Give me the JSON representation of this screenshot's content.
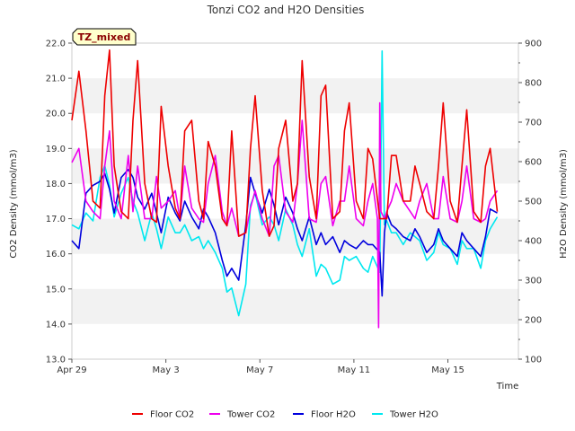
{
  "chart_data": {
    "type": "line",
    "title": "Tonzi CO2 and H2O Densities",
    "xlabel": "Time",
    "ylabel_left": "CO2 Density (mmol/m3)",
    "ylabel_right": "H2O Density (mmol/m3)",
    "badge": "TZ_mixed",
    "ylim_left": [
      13.0,
      22.0
    ],
    "ylim_right": [
      100,
      900
    ],
    "yticks_left": [
      "13.0",
      "14.0",
      "15.0",
      "16.0",
      "17.0",
      "18.0",
      "19.0",
      "20.0",
      "21.0",
      "22.0"
    ],
    "yticks_right": [
      "100",
      "200",
      "300",
      "400",
      "500",
      "600",
      "700",
      "800",
      "900"
    ],
    "xlim_days": [
      0,
      19
    ],
    "xticks": [
      {
        "day": 0,
        "label": "Apr 29"
      },
      {
        "day": 4,
        "label": "May 3"
      },
      {
        "day": 8,
        "label": "May 7"
      },
      {
        "day": 12,
        "label": "May 11"
      },
      {
        "day": 16,
        "label": "May 15"
      }
    ],
    "grid": "horizontal bands",
    "legend_placement": "bottom",
    "series": [
      {
        "name": "Floor CO2",
        "axis": "left",
        "color": "#ee0000",
        "x": [
          0,
          0.3,
          0.6,
          0.9,
          1.2,
          1.4,
          1.6,
          1.8,
          2.1,
          2.4,
          2.6,
          2.8,
          3.1,
          3.4,
          3.6,
          3.8,
          4.1,
          4.4,
          4.6,
          4.8,
          5.1,
          5.4,
          5.6,
          5.8,
          6.1,
          6.4,
          6.6,
          6.8,
          7.1,
          7.4,
          7.6,
          7.8,
          8.1,
          8.4,
          8.6,
          8.8,
          9.1,
          9.4,
          9.6,
          9.8,
          10.1,
          10.4,
          10.6,
          10.8,
          11.1,
          11.4,
          11.6,
          11.8,
          12.1,
          12.4,
          12.6,
          12.8,
          13.1,
          13.4,
          13.6,
          13.8,
          14.1,
          14.4,
          14.6,
          14.8,
          15.1,
          15.4,
          15.6,
          15.8,
          16.1,
          16.4,
          16.6,
          16.8,
          17.1,
          17.4,
          17.6,
          17.8,
          18.1
        ],
        "y": [
          19.8,
          21.2,
          19.5,
          17.5,
          17.3,
          20.5,
          21.8,
          18.5,
          17.2,
          17.0,
          19.8,
          21.5,
          18.0,
          17.0,
          16.9,
          20.2,
          18.5,
          17.3,
          17.0,
          19.5,
          19.8,
          17.5,
          17.0,
          19.2,
          18.5,
          17.0,
          16.8,
          19.5,
          16.5,
          16.6,
          19.0,
          20.5,
          17.8,
          16.5,
          16.8,
          19.0,
          19.8,
          17.5,
          18.0,
          21.5,
          18.2,
          17.0,
          20.5,
          20.8,
          17.0,
          17.2,
          19.5,
          20.3,
          17.5,
          17.0,
          19.0,
          18.7,
          17.0,
          17.0,
          18.8,
          18.8,
          17.5,
          17.5,
          18.5,
          18.0,
          17.2,
          17.0,
          18.5,
          20.3,
          17.5,
          16.9,
          18.5,
          20.1,
          17.2,
          16.9,
          18.5,
          19.0,
          17.2
        ]
      },
      {
        "name": "Tower CO2",
        "axis": "left",
        "color": "#ee00ee",
        "x": [
          0,
          0.3,
          0.6,
          0.9,
          1.2,
          1.4,
          1.6,
          1.8,
          2.1,
          2.4,
          2.6,
          2.8,
          3.1,
          3.4,
          3.6,
          3.8,
          4.1,
          4.4,
          4.6,
          4.8,
          5.1,
          5.4,
          5.6,
          5.8,
          6.1,
          6.4,
          6.6,
          6.8,
          7.1,
          7.4,
          7.6,
          7.8,
          8.1,
          8.4,
          8.6,
          8.8,
          9.1,
          9.4,
          9.6,
          9.8,
          10.1,
          10.4,
          10.6,
          10.8,
          11.1,
          11.4,
          11.6,
          11.8,
          12.1,
          12.4,
          12.6,
          12.8,
          13.0,
          13.05,
          13.1,
          13.15,
          13.3,
          13.4,
          13.6,
          13.8,
          14.1,
          14.4,
          14.6,
          14.8,
          15.1,
          15.4,
          15.6,
          15.8,
          16.1,
          16.4,
          16.6,
          16.8,
          17.1,
          17.4,
          17.6,
          17.8,
          18.1
        ],
        "y": [
          18.6,
          19.0,
          17.5,
          17.2,
          17.0,
          18.5,
          19.5,
          17.5,
          17.0,
          18.8,
          17.2,
          18.5,
          17.0,
          17.0,
          18.2,
          17.3,
          17.5,
          17.8,
          17.0,
          18.5,
          17.3,
          17.0,
          16.9,
          18.0,
          18.8,
          17.2,
          16.8,
          17.3,
          16.5,
          16.6,
          17.3,
          17.8,
          17.0,
          16.5,
          18.5,
          18.8,
          17.2,
          16.9,
          18.0,
          19.8,
          17.0,
          16.9,
          18.0,
          18.2,
          16.8,
          17.5,
          17.5,
          18.5,
          17.0,
          16.8,
          17.5,
          18.0,
          17.0,
          13.9,
          20.3,
          17.2,
          17.0,
          17.2,
          17.5,
          18.0,
          17.5,
          17.2,
          17.0,
          17.5,
          18.0,
          17.0,
          17.0,
          18.2,
          17.0,
          16.9,
          17.5,
          18.5,
          17.0,
          16.9,
          17.0,
          17.5,
          17.8
        ]
      },
      {
        "name": "Floor H2O",
        "axis": "right",
        "color": "#0000dd",
        "x": [
          0,
          0.3,
          0.6,
          0.9,
          1.2,
          1.4,
          1.6,
          1.8,
          2.1,
          2.4,
          2.6,
          2.8,
          3.1,
          3.4,
          3.6,
          3.8,
          4.1,
          4.4,
          4.6,
          4.8,
          5.1,
          5.4,
          5.6,
          5.8,
          6.1,
          6.4,
          6.6,
          6.8,
          7.1,
          7.4,
          7.6,
          7.8,
          8.1,
          8.4,
          8.6,
          8.8,
          9.1,
          9.4,
          9.6,
          9.8,
          10.1,
          10.4,
          10.6,
          10.8,
          11.1,
          11.4,
          11.6,
          11.8,
          12.1,
          12.4,
          12.6,
          12.8,
          13.1,
          13.2,
          13.3,
          13.4,
          13.6,
          13.8,
          14.1,
          14.4,
          14.6,
          14.8,
          15.1,
          15.4,
          15.6,
          15.8,
          16.1,
          16.4,
          16.6,
          16.8,
          17.1,
          17.4,
          17.6,
          17.8,
          18.1
        ],
        "y": [
          400,
          380,
          520,
          540,
          550,
          570,
          530,
          470,
          560,
          580,
          560,
          510,
          480,
          520,
          470,
          420,
          510,
          470,
          450,
          500,
          460,
          430,
          480,
          460,
          420,
          350,
          310,
          330,
          300,
          440,
          560,
          520,
          470,
          530,
          490,
          440,
          510,
          470,
          430,
          400,
          460,
          390,
          420,
          390,
          410,
          370,
          400,
          390,
          380,
          400,
          390,
          390,
          370,
          260,
          420,
          470,
          440,
          430,
          410,
          400,
          430,
          410,
          370,
          390,
          430,
          400,
          380,
          360,
          420,
          400,
          380,
          360,
          410,
          480,
          470
        ]
      },
      {
        "name": "Tower H2O",
        "axis": "right",
        "color": "#00e8f0",
        "x": [
          0,
          0.3,
          0.6,
          0.9,
          1.2,
          1.4,
          1.6,
          1.8,
          2.1,
          2.4,
          2.6,
          2.8,
          3.1,
          3.4,
          3.6,
          3.8,
          4.1,
          4.4,
          4.6,
          4.8,
          5.1,
          5.4,
          5.6,
          5.8,
          6.1,
          6.4,
          6.6,
          6.8,
          7.1,
          7.4,
          7.6,
          7.8,
          8.1,
          8.4,
          8.6,
          8.8,
          9.1,
          9.4,
          9.6,
          9.8,
          10.1,
          10.4,
          10.6,
          10.8,
          11.1,
          11.4,
          11.6,
          11.8,
          12.1,
          12.4,
          12.6,
          12.8,
          13.1,
          13.2,
          13.3,
          13.4,
          13.6,
          13.8,
          14.1,
          14.4,
          14.6,
          14.8,
          15.1,
          15.4,
          15.6,
          15.8,
          16.1,
          16.4,
          16.6,
          16.8,
          17.1,
          17.4,
          17.6,
          17.8,
          18.1
        ],
        "y": [
          440,
          430,
          470,
          450,
          560,
          590,
          540,
          460,
          520,
          560,
          500,
          470,
          400,
          470,
          430,
          380,
          460,
          420,
          420,
          440,
          400,
          410,
          380,
          400,
          370,
          330,
          270,
          280,
          210,
          290,
          490,
          520,
          440,
          460,
          440,
          400,
          480,
          440,
          390,
          360,
          430,
          310,
          340,
          330,
          290,
          300,
          360,
          350,
          360,
          330,
          320,
          360,
          320,
          880,
          440,
          450,
          420,
          420,
          390,
          420,
          410,
          400,
          350,
          370,
          420,
          390,
          380,
          340,
          400,
          380,
          380,
          330,
          400,
          430,
          460
        ]
      }
    ]
  }
}
